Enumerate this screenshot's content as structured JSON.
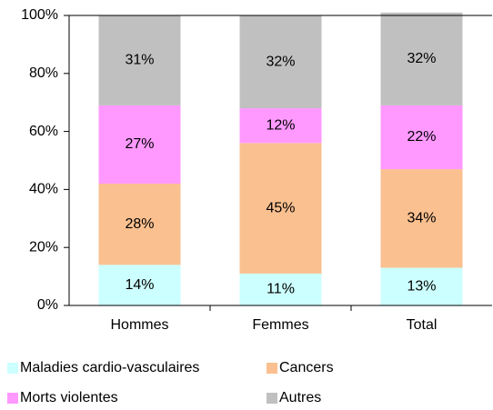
{
  "chart_data": {
    "type": "stacked_bar",
    "categories": [
      "Hommes",
      "Femmes",
      "Total"
    ],
    "series": [
      {
        "name": "Maladies cardio-vasculaires",
        "color": "#ccffff",
        "values": [
          14,
          11,
          13
        ],
        "value_labels": [
          "14%",
          "11%",
          "13%"
        ]
      },
      {
        "name": "Cancers",
        "color": "#fac090",
        "values": [
          28,
          45,
          34
        ],
        "value_labels": [
          "28%",
          "45%",
          "34%"
        ]
      },
      {
        "name": "Morts violentes",
        "color": "#ff99ff",
        "values": [
          27,
          12,
          22
        ],
        "value_labels": [
          "27%",
          "12%",
          "22%"
        ]
      },
      {
        "name": "Autres",
        "color": "#c0c0c0",
        "values": [
          31,
          32,
          32
        ],
        "value_labels": [
          "31%",
          "32%",
          "32%"
        ]
      }
    ],
    "ylim": [
      0,
      100
    ],
    "yticks": [
      {
        "value": 0,
        "label": "0%"
      },
      {
        "value": 20,
        "label": "20%"
      },
      {
        "value": 40,
        "label": "40%"
      },
      {
        "value": 60,
        "label": "60%"
      },
      {
        "value": 80,
        "label": "80%"
      },
      {
        "value": 100,
        "label": "100%"
      }
    ],
    "legend": "bottom"
  }
}
